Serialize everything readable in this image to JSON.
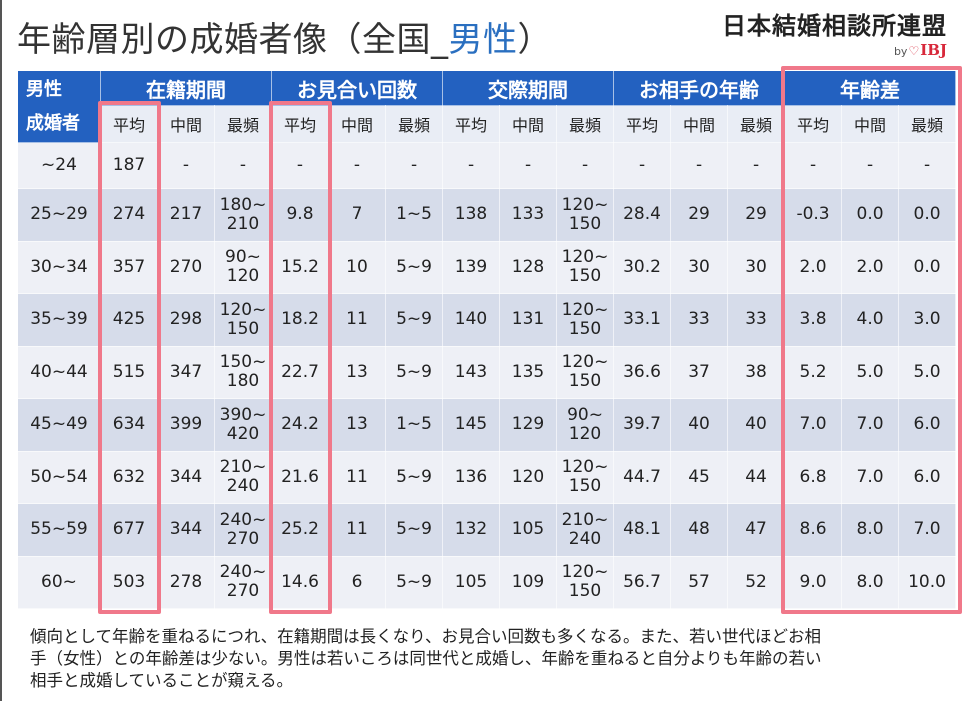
{
  "header": {
    "title_prefix": "年齢層別の成婚者像（全国_",
    "title_highlight": "男性",
    "title_suffix": "）",
    "logo": {
      "name": "日本結婚相談所連盟",
      "by": "by",
      "brand": "IBJ"
    }
  },
  "table": {
    "corner": [
      "男性",
      "成婚者"
    ],
    "groups": [
      {
        "name": "在籍期間",
        "columns": [
          "平均",
          "中間",
          "最頻"
        ]
      },
      {
        "name": "お見合い回数",
        "columns": [
          "平均",
          "中間",
          "最頻"
        ]
      },
      {
        "name": "交際期間",
        "columns": [
          "平均",
          "中間",
          "最頻"
        ]
      },
      {
        "name": "お相手の年齢",
        "columns": [
          "平均",
          "中間",
          "最頻"
        ]
      },
      {
        "name": "年齢差",
        "columns": [
          "平均",
          "中間",
          "最頻"
        ]
      }
    ],
    "rows": [
      [
        "~24",
        "187",
        "-",
        "-",
        "-",
        "-",
        "-",
        "-",
        "-",
        "-",
        "-",
        "-",
        "-",
        "-",
        "-",
        "-"
      ],
      [
        "25~29",
        "274",
        "217",
        "180~\n210",
        "9.8",
        "7",
        "1~5",
        "138",
        "133",
        "120~\n150",
        "28.4",
        "29",
        "29",
        "-0.3",
        "0.0",
        "0.0"
      ],
      [
        "30~34",
        "357",
        "270",
        "90~\n120",
        "15.2",
        "10",
        "5~9",
        "139",
        "128",
        "120~\n150",
        "30.2",
        "30",
        "30",
        "2.0",
        "2.0",
        "0.0"
      ],
      [
        "35~39",
        "425",
        "298",
        "120~\n150",
        "18.2",
        "11",
        "5~9",
        "140",
        "131",
        "120~\n150",
        "33.1",
        "33",
        "33",
        "3.8",
        "4.0",
        "3.0"
      ],
      [
        "40~44",
        "515",
        "347",
        "150~\n180",
        "22.7",
        "13",
        "5~9",
        "143",
        "135",
        "120~\n150",
        "36.6",
        "37",
        "38",
        "5.2",
        "5.0",
        "5.0"
      ],
      [
        "45~49",
        "634",
        "399",
        "390~\n420",
        "24.2",
        "13",
        "1~5",
        "145",
        "129",
        "90~\n120",
        "39.7",
        "40",
        "40",
        "7.0",
        "7.0",
        "6.0"
      ],
      [
        "50~54",
        "632",
        "344",
        "210~\n240",
        "21.6",
        "11",
        "5~9",
        "136",
        "120",
        "120~\n150",
        "44.7",
        "45",
        "44",
        "6.8",
        "7.0",
        "6.0"
      ],
      [
        "55~59",
        "677",
        "344",
        "240~\n270",
        "25.2",
        "11",
        "5~9",
        "132",
        "105",
        "210~\n240",
        "48.1",
        "48",
        "47",
        "8.6",
        "8.0",
        "7.0"
      ],
      [
        "60~",
        "503",
        "278",
        "240~\n270",
        "14.6",
        "6",
        "5~9",
        "105",
        "109",
        "120~\n150",
        "56.7",
        "57",
        "52",
        "9.0",
        "8.0",
        "10.0"
      ]
    ]
  },
  "footer": {
    "lines": [
      "傾向として年齢を重ねるにつれ、在籍期間は長くなり、お見合い回数も多くなる。また、若い世代ほどお相",
      "手（女性）との年齢差は少ない。男性は若いころは同世代と成婚し、年齢を重ねると自分よりも年齢の若い",
      "相手と成婚していることが窺える。"
    ]
  }
}
